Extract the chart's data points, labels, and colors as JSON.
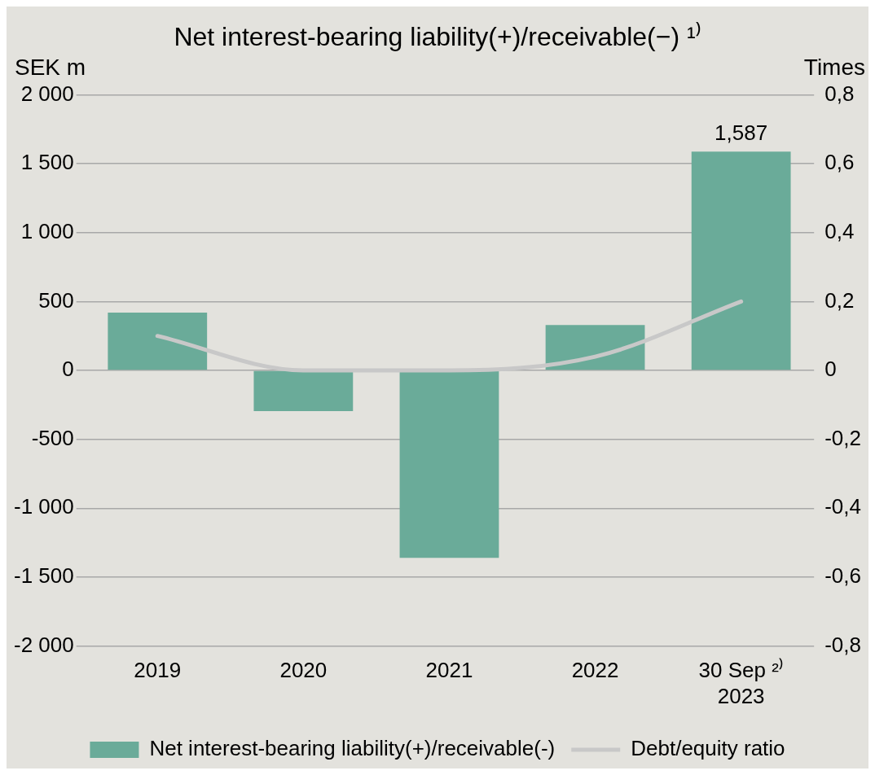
{
  "chart_data": {
    "type": "bar",
    "title": "Net interest-bearing liability(+)/receivable(−) ¹⁾",
    "ylabel": "SEK m",
    "y2label": "Times",
    "categories": [
      "2019",
      "2020",
      "2021",
      "2022",
      "30 Sep ²⁾\n2023"
    ],
    "series": [
      {
        "name": "Net interest-bearing liability(+)/receivable(-)",
        "color": "#6aab99",
        "values": [
          420,
          -295,
          -1360,
          330,
          1587
        ],
        "value_labels": [
          null,
          null,
          null,
          null,
          "1,587"
        ]
      },
      {
        "type": "line",
        "name": "Debt/equity ratio",
        "color": "#c8c8c8",
        "axis": "y2",
        "marker": "none",
        "values": [
          0.1,
          0,
          0,
          0.04,
          0.2
        ]
      }
    ],
    "ylim": [
      -2000,
      2000
    ],
    "yticks": [
      {
        "value": -2000,
        "label": "-2 000"
      },
      {
        "value": -1500,
        "label": "-1 500"
      },
      {
        "value": -1000,
        "label": "-1 000"
      },
      -500,
      0,
      500,
      {
        "value": 1000,
        "label": "1 000"
      },
      {
        "value": 1500,
        "label": "1 500"
      },
      {
        "value": 2000,
        "label": "2 000"
      }
    ],
    "y2lim": [
      -0.8,
      0.8
    ],
    "y2ticks": [
      {
        "value": -0.8,
        "label": "-0,8"
      },
      {
        "value": -0.6,
        "label": "-0,6"
      },
      {
        "value": -0.4,
        "label": "-0,4"
      },
      {
        "value": -0.2,
        "label": "-0,2"
      },
      0,
      {
        "value": 0.2,
        "label": "0,2"
      },
      {
        "value": 0.4,
        "label": "0,4"
      },
      {
        "value": 0.6,
        "label": "0,6"
      },
      {
        "value": 0.8,
        "label": "0,8"
      }
    ],
    "grid": "y",
    "legend": "bottom"
  }
}
